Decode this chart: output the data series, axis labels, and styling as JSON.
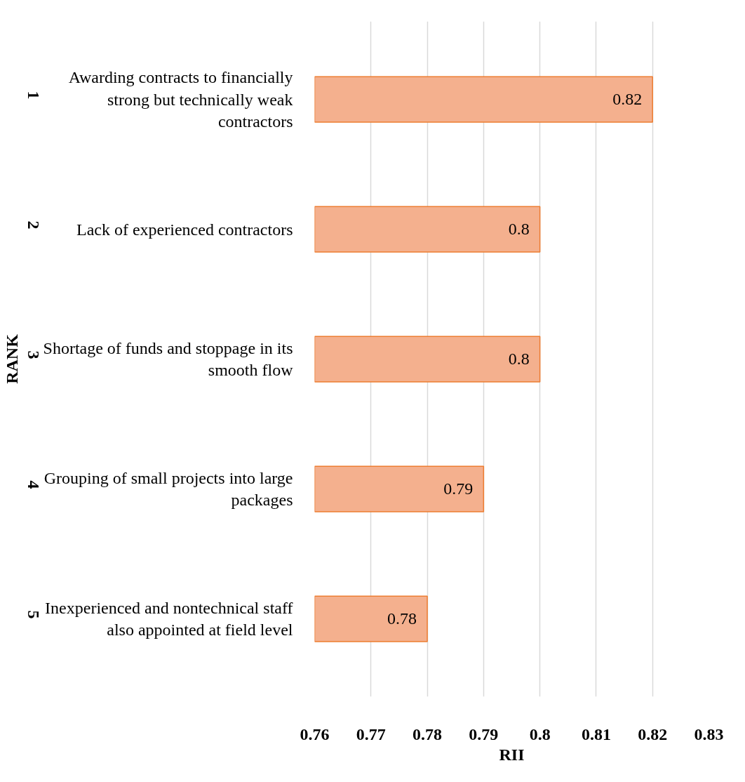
{
  "chart_data": {
    "type": "bar",
    "orientation": "horizontal",
    "xlabel": "RII",
    "ylabel": "RANK",
    "categories": [
      "Awarding contracts to financially strong but technically weak contractors",
      "Lack of experienced contractors",
      "Shortage of funds and stoppage in its smooth flow",
      "Grouping of small projects into large packages",
      "Inexperienced and nontechnical staff also appointed at field level"
    ],
    "values": [
      0.82,
      0.8,
      0.8,
      0.79,
      0.78
    ],
    "color": "#f4b08e",
    "xlim": [
      0.76,
      0.83
    ],
    "xticks": [
      0.76,
      0.77,
      0.78,
      0.79,
      0.8,
      0.81,
      0.82,
      0.83
    ],
    "annotations": [
      "1",
      "2",
      "3",
      "4",
      "5"
    ],
    "data_labels": true,
    "grid": "x"
  }
}
